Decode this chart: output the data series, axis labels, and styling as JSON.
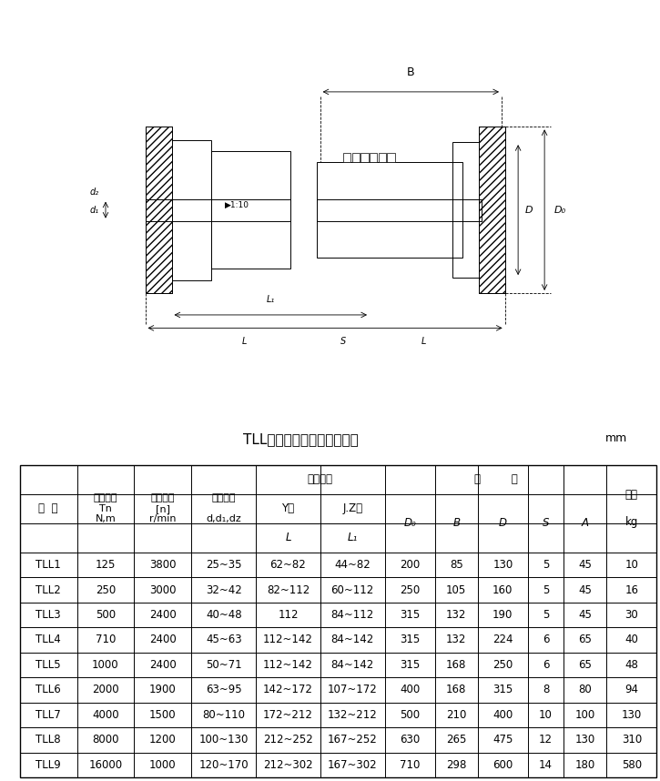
{
  "title": "TLL型联轴器主要参数和尺寸",
  "unit": "mm",
  "header_row1": [
    "型 号",
    "公称转矩\nTn\nN.m",
    "许用转速\n[n]\nr/min",
    "轴孔直径\n\nd,d₁,dz",
    "轴孔长度",
    "",
    "尺",
    "寸",
    "",
    "",
    "重量\n\nkg"
  ],
  "subheader": [
    "",
    "",
    "",
    "",
    "Y型",
    "J.Z型",
    "D₀",
    "B",
    "D",
    "S",
    "A",
    ""
  ],
  "subheader2": [
    "",
    "",
    "",
    "",
    "L",
    "L₁",
    "",
    "",
    "",
    "",
    "",
    ""
  ],
  "col_labels": [
    "型 号",
    "公称转矩\nTn\nN,m",
    "许用转速\n[n]\nr/min",
    "轴孔直径\nd,d₁,dz",
    "Y型\nL",
    "J.Z型\nL₁",
    "D₀",
    "B",
    "D",
    "S",
    "A",
    "重量\nkg"
  ],
  "data": [
    [
      "TLL1",
      "125",
      "3800",
      "25~35",
      "62~82",
      "44~82",
      "200",
      "85",
      "130",
      "5",
      "45",
      "10"
    ],
    [
      "TLL2",
      "250",
      "3000",
      "32~42",
      "82~112",
      "60~112",
      "250",
      "105",
      "160",
      "5",
      "45",
      "16"
    ],
    [
      "TLL3",
      "500",
      "2400",
      "40~48",
      "112",
      "84~112",
      "315",
      "132",
      "190",
      "5",
      "45",
      "30"
    ],
    [
      "TLL4",
      "710",
      "2400",
      "45~63",
      "112~142",
      "84~142",
      "315",
      "132",
      "224",
      "6",
      "65",
      "40"
    ],
    [
      "TLL5",
      "1000",
      "2400",
      "50~71",
      "112~142",
      "84~142",
      "315",
      "168",
      "250",
      "6",
      "65",
      "48"
    ],
    [
      "TLL6",
      "2000",
      "1900",
      "63~95",
      "142~172",
      "107~172",
      "400",
      "168",
      "315",
      "8",
      "80",
      "94"
    ],
    [
      "TLL7",
      "4000",
      "1500",
      "80~110",
      "172~212",
      "132~212",
      "500",
      "210",
      "400",
      "10",
      "100",
      "130"
    ],
    [
      "TLL8",
      "8000",
      "1200",
      "100~130",
      "212~252",
      "167~252",
      "630",
      "265",
      "475",
      "12",
      "130",
      "310"
    ],
    [
      "TLL9",
      "16000",
      "1000",
      "120~170",
      "212~302",
      "167~302",
      "710",
      "298",
      "600",
      "14",
      "180",
      "580"
    ]
  ],
  "bg_color": "#ffffff",
  "line_color": "#000000",
  "text_color": "#000000",
  "fontsize_title": 11,
  "fontsize_table": 8.5,
  "fontsize_unit": 9
}
